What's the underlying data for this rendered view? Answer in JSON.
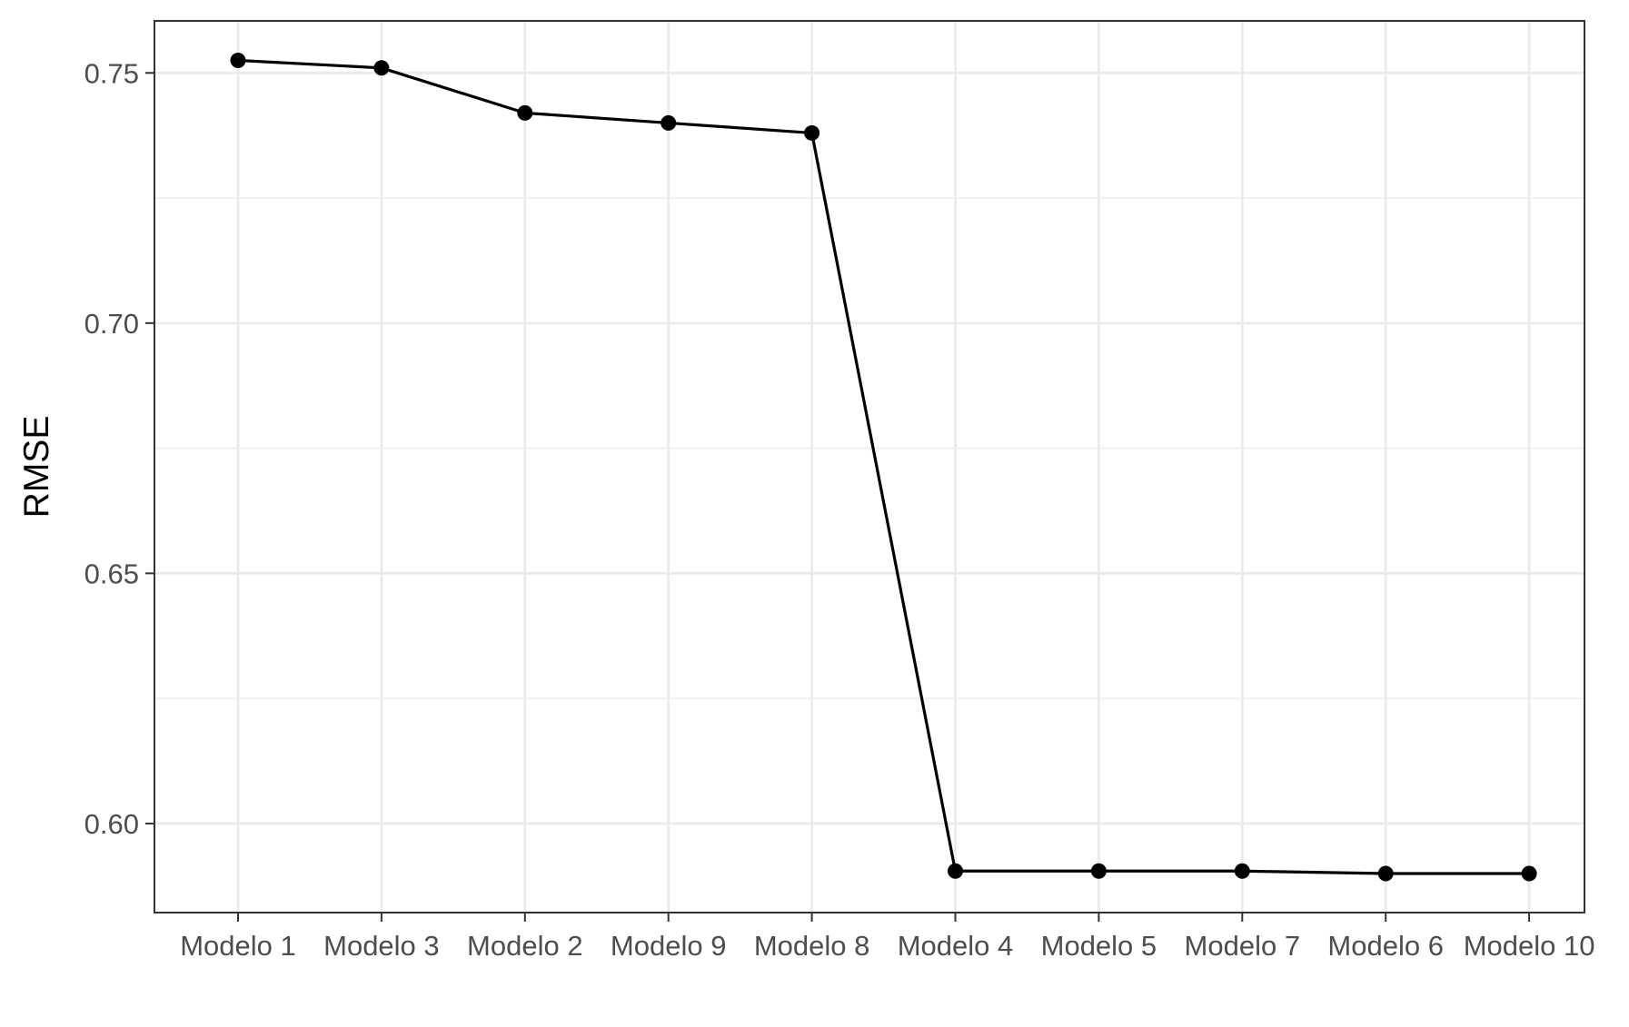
{
  "chart_data": {
    "type": "line",
    "categories": [
      "Modelo 1",
      "Modelo 3",
      "Modelo 2",
      "Modelo 9",
      "Modelo 8",
      "Modelo 4",
      "Modelo 5",
      "Modelo 7",
      "Modelo 6",
      "Modelo 10"
    ],
    "values": [
      0.7525,
      0.751,
      0.742,
      0.74,
      0.738,
      0.5905,
      0.5905,
      0.5905,
      0.59,
      0.59
    ],
    "xlabel": "",
    "ylabel": "RMSE",
    "ylim": [
      0.5822,
      0.7604
    ],
    "yticks": [
      0.6,
      0.65,
      0.7,
      0.75
    ],
    "ytick_labels": [
      "0.60",
      "0.65",
      "0.70",
      "0.75"
    ],
    "y_minor_ticks": [
      0.625,
      0.675,
      0.725
    ],
    "grid": true,
    "legend": "none",
    "colors": {
      "line": "#000000",
      "points": "#000000",
      "grid": "#ebebeb",
      "panel_border": "#333333",
      "tick_text": "#4d4d4d"
    }
  }
}
